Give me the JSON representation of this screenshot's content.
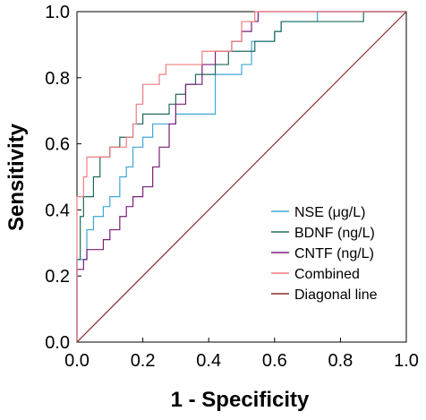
{
  "chart_data": {
    "type": "line",
    "title": "",
    "xlabel": "1 - Specificity",
    "ylabel": "Sensitivity",
    "xlim": [
      0.0,
      1.0
    ],
    "ylim": [
      0.0,
      1.0
    ],
    "x_ticks": [
      "0.0",
      "0.2",
      "0.4",
      "0.6",
      "0.8",
      "1.0"
    ],
    "y_ticks": [
      "0.0",
      "0.2",
      "0.4",
      "0.6",
      "0.8",
      "1.0"
    ],
    "grid": false,
    "legend_position": "lower-right",
    "series": [
      {
        "name": "NSE (μg/L)",
        "color": "#3FA7D6",
        "points": [
          [
            0,
            0
          ],
          [
            0,
            0.25
          ],
          [
            0.03,
            0.25
          ],
          [
            0.03,
            0.34
          ],
          [
            0.05,
            0.34
          ],
          [
            0.05,
            0.38
          ],
          [
            0.08,
            0.38
          ],
          [
            0.08,
            0.41
          ],
          [
            0.1,
            0.41
          ],
          [
            0.1,
            0.44
          ],
          [
            0.13,
            0.44
          ],
          [
            0.13,
            0.5
          ],
          [
            0.15,
            0.5
          ],
          [
            0.15,
            0.53
          ],
          [
            0.17,
            0.53
          ],
          [
            0.17,
            0.59
          ],
          [
            0.2,
            0.59
          ],
          [
            0.2,
            0.62
          ],
          [
            0.23,
            0.62
          ],
          [
            0.23,
            0.66
          ],
          [
            0.3,
            0.66
          ],
          [
            0.3,
            0.69
          ],
          [
            0.42,
            0.69
          ],
          [
            0.42,
            0.81
          ],
          [
            0.5,
            0.81
          ],
          [
            0.5,
            0.84
          ],
          [
            0.53,
            0.84
          ],
          [
            0.53,
            0.91
          ],
          [
            0.6,
            0.91
          ],
          [
            0.6,
            0.94
          ],
          [
            0.62,
            0.94
          ],
          [
            0.62,
            0.97
          ],
          [
            0.67,
            0.97
          ],
          [
            0.67,
            0.97
          ],
          [
            0.73,
            0.97
          ],
          [
            0.73,
            1.0
          ],
          [
            1.0,
            1.0
          ]
        ]
      },
      {
        "name": "BDNF (ng/L)",
        "color": "#1C6B60",
        "points": [
          [
            0,
            0
          ],
          [
            0,
            0.25
          ],
          [
            0.01,
            0.25
          ],
          [
            0.01,
            0.38
          ],
          [
            0.02,
            0.38
          ],
          [
            0.02,
            0.44
          ],
          [
            0.05,
            0.44
          ],
          [
            0.05,
            0.5
          ],
          [
            0.07,
            0.5
          ],
          [
            0.07,
            0.56
          ],
          [
            0.1,
            0.56
          ],
          [
            0.1,
            0.59
          ],
          [
            0.13,
            0.59
          ],
          [
            0.13,
            0.62
          ],
          [
            0.17,
            0.62
          ],
          [
            0.17,
            0.66
          ],
          [
            0.2,
            0.66
          ],
          [
            0.2,
            0.69
          ],
          [
            0.28,
            0.69
          ],
          [
            0.28,
            0.72
          ],
          [
            0.3,
            0.72
          ],
          [
            0.3,
            0.75
          ],
          [
            0.33,
            0.75
          ],
          [
            0.33,
            0.78
          ],
          [
            0.36,
            0.78
          ],
          [
            0.36,
            0.81
          ],
          [
            0.42,
            0.81
          ],
          [
            0.42,
            0.84
          ],
          [
            0.46,
            0.84
          ],
          [
            0.46,
            0.88
          ],
          [
            0.54,
            0.88
          ],
          [
            0.54,
            0.91
          ],
          [
            0.6,
            0.91
          ],
          [
            0.6,
            0.94
          ],
          [
            0.62,
            0.94
          ],
          [
            0.62,
            0.97
          ],
          [
            0.87,
            0.97
          ],
          [
            0.87,
            1.0
          ],
          [
            1.0,
            1.0
          ]
        ]
      },
      {
        "name": "CNTF (ng/L)",
        "color": "#7B1E7A",
        "points": [
          [
            0,
            0
          ],
          [
            0,
            0.22
          ],
          [
            0.02,
            0.22
          ],
          [
            0.02,
            0.25
          ],
          [
            0.03,
            0.25
          ],
          [
            0.03,
            0.28
          ],
          [
            0.08,
            0.28
          ],
          [
            0.08,
            0.31
          ],
          [
            0.1,
            0.31
          ],
          [
            0.1,
            0.34
          ],
          [
            0.13,
            0.34
          ],
          [
            0.13,
            0.38
          ],
          [
            0.15,
            0.38
          ],
          [
            0.15,
            0.41
          ],
          [
            0.17,
            0.41
          ],
          [
            0.17,
            0.44
          ],
          [
            0.2,
            0.44
          ],
          [
            0.2,
            0.47
          ],
          [
            0.23,
            0.47
          ],
          [
            0.23,
            0.53
          ],
          [
            0.25,
            0.53
          ],
          [
            0.25,
            0.59
          ],
          [
            0.28,
            0.59
          ],
          [
            0.28,
            0.66
          ],
          [
            0.3,
            0.66
          ],
          [
            0.3,
            0.72
          ],
          [
            0.33,
            0.72
          ],
          [
            0.33,
            0.78
          ],
          [
            0.38,
            0.78
          ],
          [
            0.38,
            0.84
          ],
          [
            0.42,
            0.84
          ],
          [
            0.42,
            0.88
          ],
          [
            0.47,
            0.88
          ],
          [
            0.47,
            0.91
          ],
          [
            0.5,
            0.91
          ],
          [
            0.5,
            0.94
          ],
          [
            0.53,
            0.94
          ],
          [
            0.53,
            0.97
          ],
          [
            0.55,
            0.97
          ],
          [
            0.55,
            1.0
          ],
          [
            1.0,
            1.0
          ]
        ]
      },
      {
        "name": "Combined",
        "color": "#F07C80",
        "points": [
          [
            0,
            0
          ],
          [
            0,
            0.44
          ],
          [
            0.02,
            0.44
          ],
          [
            0.02,
            0.5
          ],
          [
            0.03,
            0.5
          ],
          [
            0.03,
            0.56
          ],
          [
            0.1,
            0.56
          ],
          [
            0.1,
            0.59
          ],
          [
            0.15,
            0.59
          ],
          [
            0.15,
            0.62
          ],
          [
            0.17,
            0.62
          ],
          [
            0.17,
            0.66
          ],
          [
            0.18,
            0.66
          ],
          [
            0.18,
            0.72
          ],
          [
            0.2,
            0.72
          ],
          [
            0.2,
            0.78
          ],
          [
            0.25,
            0.78
          ],
          [
            0.25,
            0.81
          ],
          [
            0.27,
            0.81
          ],
          [
            0.27,
            0.84
          ],
          [
            0.38,
            0.84
          ],
          [
            0.38,
            0.88
          ],
          [
            0.47,
            0.88
          ],
          [
            0.47,
            0.91
          ],
          [
            0.5,
            0.91
          ],
          [
            0.5,
            0.97
          ],
          [
            0.54,
            0.97
          ],
          [
            0.54,
            1.0
          ],
          [
            1.0,
            1.0
          ]
        ]
      },
      {
        "name": "Diagonal line",
        "color": "#8B2A2A",
        "points": [
          [
            0,
            0
          ],
          [
            1,
            1
          ]
        ]
      }
    ]
  }
}
